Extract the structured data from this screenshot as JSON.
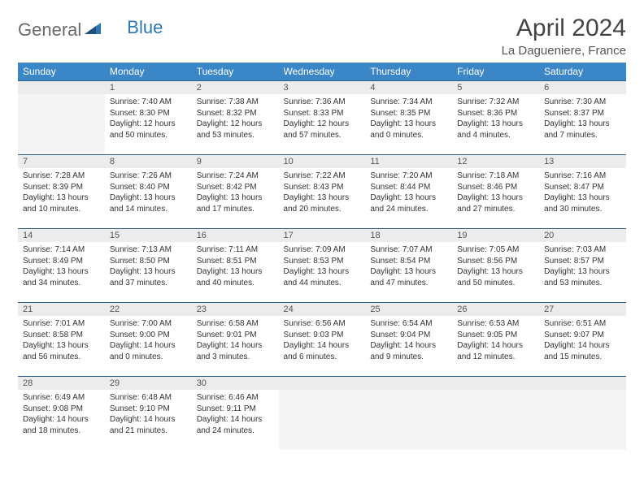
{
  "logo": {
    "part1": "General",
    "part2": "Blue"
  },
  "title": "April 2024",
  "location": "La Dagueniere, France",
  "weekdays": [
    "Sunday",
    "Monday",
    "Tuesday",
    "Wednesday",
    "Thursday",
    "Friday",
    "Saturday"
  ],
  "colors": {
    "header_bg": "#3b86c6",
    "header_fg": "#ffffff",
    "daynum_bg": "#ececec",
    "daynum_border": "#2e5e8a",
    "logo_gray": "#6b6b6b",
    "logo_blue": "#2e75b6"
  },
  "first_weekday_index": 1,
  "days": [
    {
      "n": 1,
      "sunrise": "7:40 AM",
      "sunset": "8:30 PM",
      "dl": "12 hours and 50 minutes."
    },
    {
      "n": 2,
      "sunrise": "7:38 AM",
      "sunset": "8:32 PM",
      "dl": "12 hours and 53 minutes."
    },
    {
      "n": 3,
      "sunrise": "7:36 AM",
      "sunset": "8:33 PM",
      "dl": "12 hours and 57 minutes."
    },
    {
      "n": 4,
      "sunrise": "7:34 AM",
      "sunset": "8:35 PM",
      "dl": "13 hours and 0 minutes."
    },
    {
      "n": 5,
      "sunrise": "7:32 AM",
      "sunset": "8:36 PM",
      "dl": "13 hours and 4 minutes."
    },
    {
      "n": 6,
      "sunrise": "7:30 AM",
      "sunset": "8:37 PM",
      "dl": "13 hours and 7 minutes."
    },
    {
      "n": 7,
      "sunrise": "7:28 AM",
      "sunset": "8:39 PM",
      "dl": "13 hours and 10 minutes."
    },
    {
      "n": 8,
      "sunrise": "7:26 AM",
      "sunset": "8:40 PM",
      "dl": "13 hours and 14 minutes."
    },
    {
      "n": 9,
      "sunrise": "7:24 AM",
      "sunset": "8:42 PM",
      "dl": "13 hours and 17 minutes."
    },
    {
      "n": 10,
      "sunrise": "7:22 AM",
      "sunset": "8:43 PM",
      "dl": "13 hours and 20 minutes."
    },
    {
      "n": 11,
      "sunrise": "7:20 AM",
      "sunset": "8:44 PM",
      "dl": "13 hours and 24 minutes."
    },
    {
      "n": 12,
      "sunrise": "7:18 AM",
      "sunset": "8:46 PM",
      "dl": "13 hours and 27 minutes."
    },
    {
      "n": 13,
      "sunrise": "7:16 AM",
      "sunset": "8:47 PM",
      "dl": "13 hours and 30 minutes."
    },
    {
      "n": 14,
      "sunrise": "7:14 AM",
      "sunset": "8:49 PM",
      "dl": "13 hours and 34 minutes."
    },
    {
      "n": 15,
      "sunrise": "7:13 AM",
      "sunset": "8:50 PM",
      "dl": "13 hours and 37 minutes."
    },
    {
      "n": 16,
      "sunrise": "7:11 AM",
      "sunset": "8:51 PM",
      "dl": "13 hours and 40 minutes."
    },
    {
      "n": 17,
      "sunrise": "7:09 AM",
      "sunset": "8:53 PM",
      "dl": "13 hours and 44 minutes."
    },
    {
      "n": 18,
      "sunrise": "7:07 AM",
      "sunset": "8:54 PM",
      "dl": "13 hours and 47 minutes."
    },
    {
      "n": 19,
      "sunrise": "7:05 AM",
      "sunset": "8:56 PM",
      "dl": "13 hours and 50 minutes."
    },
    {
      "n": 20,
      "sunrise": "7:03 AM",
      "sunset": "8:57 PM",
      "dl": "13 hours and 53 minutes."
    },
    {
      "n": 21,
      "sunrise": "7:01 AM",
      "sunset": "8:58 PM",
      "dl": "13 hours and 56 minutes."
    },
    {
      "n": 22,
      "sunrise": "7:00 AM",
      "sunset": "9:00 PM",
      "dl": "14 hours and 0 minutes."
    },
    {
      "n": 23,
      "sunrise": "6:58 AM",
      "sunset": "9:01 PM",
      "dl": "14 hours and 3 minutes."
    },
    {
      "n": 24,
      "sunrise": "6:56 AM",
      "sunset": "9:03 PM",
      "dl": "14 hours and 6 minutes."
    },
    {
      "n": 25,
      "sunrise": "6:54 AM",
      "sunset": "9:04 PM",
      "dl": "14 hours and 9 minutes."
    },
    {
      "n": 26,
      "sunrise": "6:53 AM",
      "sunset": "9:05 PM",
      "dl": "14 hours and 12 minutes."
    },
    {
      "n": 27,
      "sunrise": "6:51 AM",
      "sunset": "9:07 PM",
      "dl": "14 hours and 15 minutes."
    },
    {
      "n": 28,
      "sunrise": "6:49 AM",
      "sunset": "9:08 PM",
      "dl": "14 hours and 18 minutes."
    },
    {
      "n": 29,
      "sunrise": "6:48 AM",
      "sunset": "9:10 PM",
      "dl": "14 hours and 21 minutes."
    },
    {
      "n": 30,
      "sunrise": "6:46 AM",
      "sunset": "9:11 PM",
      "dl": "14 hours and 24 minutes."
    }
  ],
  "labels": {
    "sunrise": "Sunrise:",
    "sunset": "Sunset:",
    "daylight": "Daylight:"
  }
}
